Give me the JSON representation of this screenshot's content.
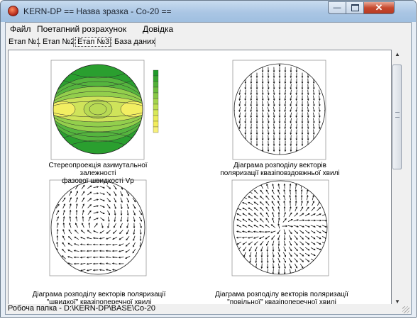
{
  "window": {
    "title": "KERN-DP == Назва зразка - Co-20 =="
  },
  "menu": [
    {
      "label": "Файл"
    },
    {
      "label": "Поетапний розрахунок"
    },
    {
      "label": "Довідка"
    }
  ],
  "tabs": [
    {
      "label": "Етап №1"
    },
    {
      "label": "Етап №2"
    },
    {
      "label": "Етап №3",
      "active": true
    },
    {
      "label": "База даних"
    }
  ],
  "plots": [
    {
      "caption_line1": "Стереопроекція азимутальної залежності",
      "caption_line2": "фазової швидкості Vp",
      "type": "contour"
    },
    {
      "caption_line1": "Діаграма розподілу векторів",
      "caption_line2": "поляризації квазіповздовжньої хвилі",
      "type": "vector-field"
    },
    {
      "caption_line1": "Діаграма розподілу векторів поляризації",
      "caption_line2": "\"швидкої\" квазіпоперечної хвилі",
      "type": "vector-field"
    },
    {
      "caption_line1": "Діаграма розподілу векторів поляризації",
      "caption_line2": "\"повільної\" квазіпоперечної хвилі",
      "type": "vector-field"
    }
  ],
  "colors": {
    "contour_high": "#1f9a2a",
    "contour_low": "#f2ec5a"
  },
  "status": {
    "text": "Робоча папка - D:\\KERN-DP\\BASE\\Co-20"
  }
}
